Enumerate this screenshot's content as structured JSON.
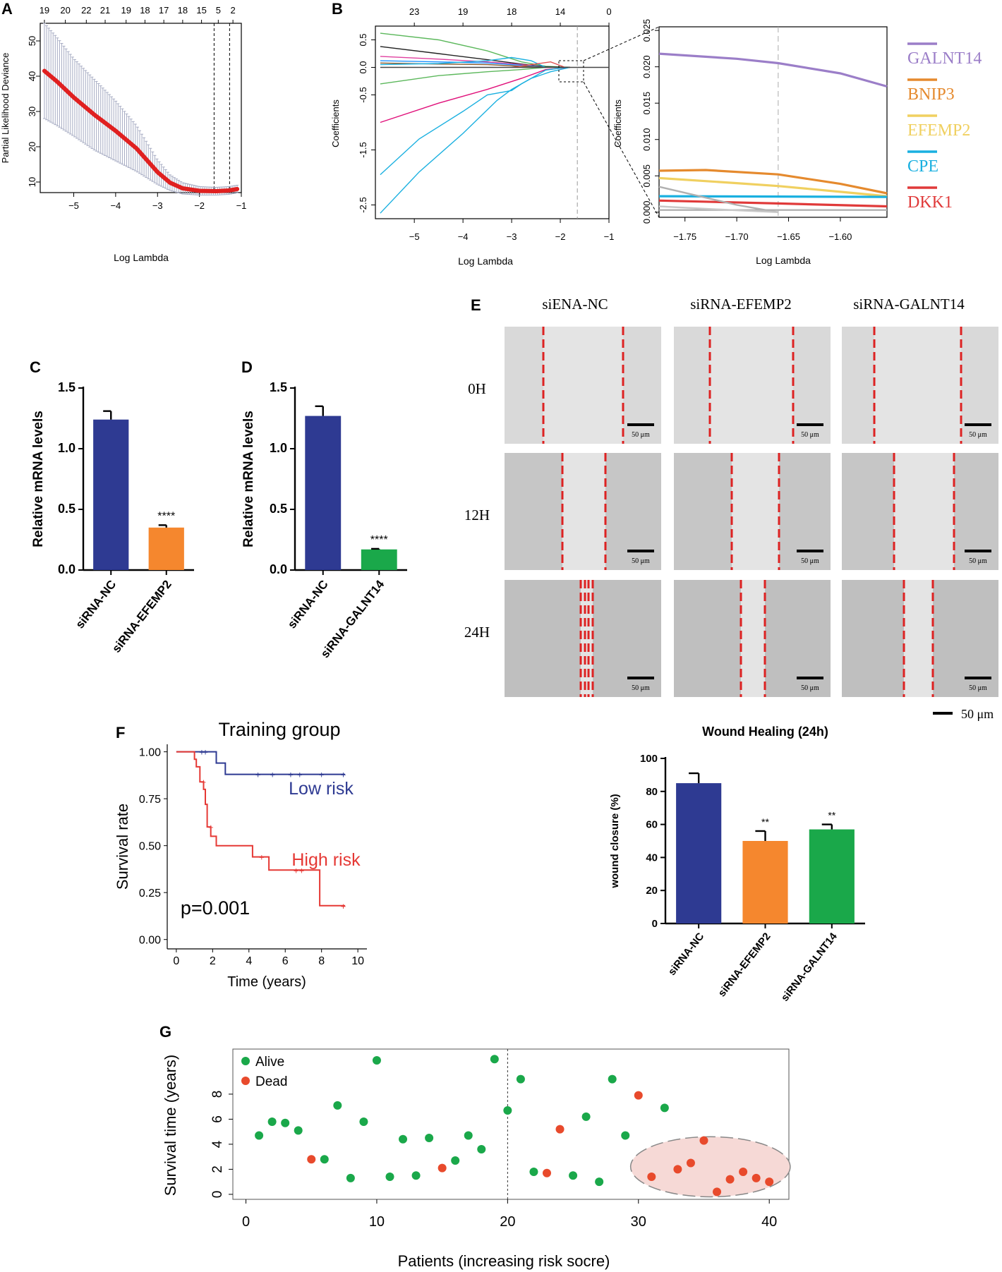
{
  "figure": {
    "panel_letters": [
      "A",
      "B",
      "C",
      "D",
      "E",
      "F",
      "G"
    ]
  },
  "chart_data": [
    {
      "panel": "A",
      "type": "line",
      "title": "",
      "xlabel": "Log Lambda",
      "ylabel": "Partial Likelihood Deviance",
      "xlim": [
        -5.8,
        -1.0
      ],
      "ylim": [
        7,
        55
      ],
      "xticks": [
        -5,
        -4,
        -3,
        -2,
        -1
      ],
      "yticks": [
        10,
        20,
        30,
        40,
        50
      ],
      "top_ticks": {
        "x": [
          -5.7,
          -5.2,
          -4.7,
          -4.25,
          -3.75,
          -3.3,
          -2.85,
          -2.4,
          -1.95,
          -1.55,
          -1.2
        ],
        "labels": [
          "19",
          "20",
          "22",
          "21",
          "19",
          "18",
          "17",
          "18",
          "15",
          "5",
          "2"
        ]
      },
      "vlines": [
        -1.65,
        -1.28
      ],
      "series": [
        {
          "name": "deviance",
          "x": [
            -5.7,
            -5.4,
            -5.0,
            -4.5,
            -4.0,
            -3.5,
            -3.0,
            -2.7,
            -2.4,
            -2.0,
            -1.6,
            -1.3,
            -1.1
          ],
          "y": [
            41.5,
            38.5,
            34.0,
            29.0,
            24.5,
            19.5,
            12.8,
            9.8,
            8.2,
            7.5,
            7.4,
            7.6,
            8.0
          ],
          "err": [
            13.5,
            12.5,
            11.0,
            10.0,
            8.5,
            6.5,
            3.5,
            2.2,
            1.6,
            1.2,
            1.1,
            1.1,
            1.1
          ]
        }
      ]
    },
    {
      "panel": "B",
      "type": "line",
      "title": "",
      "xlabel": "Log Lambda",
      "ylabel": "Coefficients",
      "xlim": [
        -5.8,
        -1.0
      ],
      "ylim": [
        -2.75,
        0.75
      ],
      "xticks": [
        -5,
        -4,
        -3,
        -2,
        -1
      ],
      "yticks": [
        -2.5,
        -1.5,
        -0.5,
        0.0,
        0.5
      ],
      "top_ticks": {
        "x": [
          -5.0,
          -4.0,
          -3.0,
          -2.0,
          -1.0
        ],
        "labels": [
          "23",
          "19",
          "18",
          "14",
          "0"
        ]
      },
      "vline": -1.65,
      "series": [
        {
          "color": "#5cb85c",
          "x": [
            -5.7,
            -4.5,
            -3.5,
            -2.8,
            -2.3,
            -1.8
          ],
          "y": [
            0.62,
            0.5,
            0.3,
            0.1,
            0.02,
            0.0
          ]
        },
        {
          "color": "#222222",
          "x": [
            -5.7,
            -4.5,
            -3.5,
            -2.8,
            -2.3,
            -1.8
          ],
          "y": [
            0.38,
            0.25,
            0.14,
            0.06,
            0.01,
            0.0
          ]
        },
        {
          "color": "#e040a0",
          "x": [
            -5.7,
            -4.5,
            -3.5,
            -2.8,
            -2.3
          ],
          "y": [
            0.2,
            0.15,
            0.1,
            0.05,
            0.0
          ]
        },
        {
          "color": "#1e90ff",
          "x": [
            -5.7,
            -4.5,
            -3.5,
            -2.8,
            -2.3
          ],
          "y": [
            0.12,
            0.1,
            0.08,
            0.04,
            0.0
          ]
        },
        {
          "color": "#8a5a2b",
          "x": [
            -5.7,
            -4.5,
            -3.5,
            -2.8,
            -2.3
          ],
          "y": [
            0.08,
            0.06,
            0.05,
            0.02,
            0.0
          ]
        },
        {
          "color": "#5cb85c",
          "x": [
            -5.7,
            -4.5,
            -3.5,
            -2.8,
            -2.3
          ],
          "y": [
            -0.3,
            -0.15,
            -0.08,
            -0.04,
            0.0
          ]
        },
        {
          "color": "#e0107a",
          "x": [
            -5.7,
            -4.5,
            -3.5,
            -2.8,
            -2.3,
            -1.8
          ],
          "y": [
            -1.0,
            -0.65,
            -0.4,
            -0.2,
            -0.04,
            0.0
          ]
        },
        {
          "color": "#1ab0e0",
          "x": [
            -5.7,
            -4.9,
            -4.0,
            -3.3,
            -3.0,
            -2.6,
            -2.2,
            -1.8
          ],
          "y": [
            -2.65,
            -1.9,
            -1.2,
            -0.6,
            -0.4,
            -0.2,
            -0.08,
            0.0
          ]
        },
        {
          "color": "#1ab0e0",
          "x": [
            -5.7,
            -4.9,
            -4.0,
            -3.5,
            -3.0,
            -2.8,
            -2.3,
            -1.9
          ],
          "y": [
            -1.95,
            -1.3,
            -0.8,
            -0.5,
            -0.42,
            -0.3,
            -0.05,
            0.0
          ]
        },
        {
          "color": "#1ab0e0",
          "x": [
            -5.7,
            -4.5,
            -3.5,
            -3.0,
            -2.6,
            -2.3
          ],
          "y": [
            0.05,
            0.07,
            0.12,
            0.18,
            0.12,
            0.0
          ]
        },
        {
          "color": "#e05050",
          "x": [
            -3.0,
            -2.6,
            -2.2,
            -1.9
          ],
          "y": [
            0.0,
            0.05,
            0.1,
            0.0
          ]
        },
        {
          "color": "#444444",
          "x": [
            -5.7,
            -1.0
          ],
          "y": [
            0.0,
            0.0
          ]
        }
      ]
    },
    {
      "panel": "B-zoom",
      "type": "line",
      "title": "",
      "xlabel": "Log Lambda",
      "ylabel": "Coefficients",
      "xlim": [
        -1.775,
        -1.555
      ],
      "ylim": [
        -0.0007,
        0.0255
      ],
      "xticks": [
        -1.75,
        -1.7,
        -1.65,
        -1.6
      ],
      "xtick_labels": [
        "−1.75",
        "−1.70",
        "−1.65",
        "−1.60"
      ],
      "yticks": [
        0.0,
        0.005,
        0.01,
        0.015,
        0.02,
        0.025
      ],
      "ytick_labels": [
        "0.000",
        "0.005",
        "0.010",
        "0.015",
        "0.020",
        "0.025"
      ],
      "vline": -1.66,
      "series": [
        {
          "name": "GALNT14",
          "color": "#9b7ec8",
          "x": [
            -1.775,
            -1.7,
            -1.66,
            -1.6,
            -1.555
          ],
          "y": [
            0.0218,
            0.0211,
            0.0205,
            0.0191,
            0.0173
          ]
        },
        {
          "name": "BNIP3",
          "color": "#e58a2e",
          "x": [
            -1.775,
            -1.73,
            -1.66,
            -1.6,
            -1.555
          ],
          "y": [
            0.0057,
            0.0058,
            0.0052,
            0.0039,
            0.0026
          ]
        },
        {
          "name": "EFEMP2",
          "color": "#f0d060",
          "x": [
            -1.775,
            -1.7,
            -1.66,
            -1.6,
            -1.555
          ],
          "y": [
            0.0047,
            0.004,
            0.0036,
            0.0028,
            0.0022
          ]
        },
        {
          "name": "CPE",
          "color": "#1ab0e0",
          "x": [
            -1.775,
            -1.555
          ],
          "y": [
            0.0022,
            0.0021
          ]
        },
        {
          "name": "DKK1",
          "color": "#e03a3a",
          "x": [
            -1.775,
            -1.66,
            -1.555
          ],
          "y": [
            0.0016,
            0.0012,
            0.0008
          ]
        },
        {
          "name": "",
          "color": "#b0b0b0",
          "x": [
            -1.775,
            -1.7,
            -1.66
          ],
          "y": [
            0.0035,
            0.001,
            0.0
          ]
        },
        {
          "name": "",
          "color": "#b0b0b0",
          "x": [
            -1.775,
            -1.555
          ],
          "y": [
            0.0003,
            0.0003
          ]
        },
        {
          "name": "",
          "color": "#c8c8c8",
          "x": [
            -1.775,
            -1.72,
            -1.66
          ],
          "y": [
            0.0008,
            0.0004,
            0.0
          ]
        }
      ],
      "legend": [
        "GALNT14",
        "BNIP3",
        "EFEMP2",
        "CPE",
        "DKK1"
      ]
    },
    {
      "panel": "C",
      "type": "bar",
      "title": "",
      "ylabel": "Relative mRNA levels",
      "ylim": [
        0,
        1.5
      ],
      "yticks": [
        "0.0",
        "0.5",
        "1.0",
        "1.5"
      ],
      "categories": [
        "siRNA-NC",
        "siRNA-EFEMP2"
      ],
      "values": [
        1.24,
        0.35
      ],
      "errors": [
        0.07,
        0.02
      ],
      "colors": [
        "#2e3a92",
        "#f5872e"
      ],
      "significance": [
        "",
        "****"
      ]
    },
    {
      "panel": "D",
      "type": "bar",
      "title": "",
      "ylabel": "Relative mRNA levels",
      "ylim": [
        0,
        1.5
      ],
      "yticks": [
        "0.0",
        "0.5",
        "1.0",
        "1.5"
      ],
      "categories": [
        "siRNA-NC",
        "siRNA-GALNT14"
      ],
      "values": [
        1.27,
        0.17
      ],
      "errors": [
        0.08,
        0.005
      ],
      "colors": [
        "#2e3a92",
        "#1aa84a"
      ],
      "significance": [
        "",
        "****"
      ]
    },
    {
      "panel": "E",
      "type": "bar",
      "title": "Wound Healing (24h)",
      "ylabel": "wound closure  (%)",
      "ylim": [
        0,
        100
      ],
      "yticks": [
        "0",
        "20",
        "40",
        "60",
        "80",
        "100"
      ],
      "categories": [
        "siRNA-NC",
        "siRNA-EFEMP2",
        "siRNA-GALNT14"
      ],
      "values": [
        85,
        50,
        57
      ],
      "errors": [
        6,
        6,
        3
      ],
      "colors": [
        "#2e3a92",
        "#f5872e",
        "#1aa84a"
      ],
      "significance": [
        "",
        "**",
        "**"
      ]
    },
    {
      "panel": "F",
      "type": "line",
      "title": "Training group",
      "xlabel": "Time (years)",
      "ylabel": "Survival rate",
      "xlim": [
        -0.5,
        10.5
      ],
      "ylim": [
        -0.05,
        1.04
      ],
      "xticks": [
        0,
        2,
        4,
        6,
        8,
        10
      ],
      "yticks": [
        "0.00",
        "0.25",
        "0.50",
        "0.75",
        "1.00"
      ],
      "annotation": "p=0.001",
      "series": [
        {
          "name": "Low risk",
          "color": "#2e3a92",
          "x": [
            0,
            2.2,
            2.2,
            2.7,
            2.7,
            9.3
          ],
          "y": [
            1.0,
            1.0,
            0.94,
            0.94,
            0.88,
            0.88
          ],
          "censor_x": [
            1.4,
            1.6,
            4.5,
            5.3,
            6.3,
            6.8,
            8.0,
            9.2
          ],
          "censor_y": [
            1.0,
            1.0,
            0.88,
            0.88,
            0.88,
            0.88,
            0.88,
            0.88
          ]
        },
        {
          "name": "High risk",
          "color": "#e53935",
          "x": [
            0,
            1.0,
            1.0,
            1.1,
            1.1,
            1.3,
            1.3,
            1.5,
            1.5,
            1.6,
            1.6,
            1.7,
            1.7,
            1.9,
            1.9,
            2.2,
            2.2,
            4.2,
            4.2,
            5.1,
            5.1,
            7.9,
            7.9,
            9.3
          ],
          "y": [
            1.0,
            1.0,
            0.96,
            0.96,
            0.92,
            0.92,
            0.84,
            0.84,
            0.8,
            0.8,
            0.72,
            0.72,
            0.6,
            0.6,
            0.55,
            0.55,
            0.5,
            0.5,
            0.44,
            0.44,
            0.37,
            0.37,
            0.18,
            0.18
          ],
          "censor_x": [
            1.5,
            1.9,
            4.7,
            6.6,
            6.9,
            9.2
          ],
          "censor_y": [
            0.84,
            0.6,
            0.44,
            0.37,
            0.37,
            0.18
          ]
        }
      ]
    },
    {
      "panel": "G",
      "type": "scatter",
      "title": "",
      "xlabel": "Patients (increasing risk socre)",
      "ylabel": "Survival time (years)",
      "xlim": [
        -1,
        41.5
      ],
      "ylim": [
        -0.4,
        11.6
      ],
      "xticks": [
        0,
        10,
        20,
        30,
        40
      ],
      "yticks": [
        0,
        2,
        4,
        6,
        8
      ],
      "vline": 20,
      "legend": [
        "Alive",
        "Dead"
      ],
      "colors": {
        "Alive": "#1aa84a",
        "Dead": "#e84a2c"
      },
      "points": {
        "x": [
          1,
          2,
          3,
          4,
          5,
          6,
          7,
          8,
          9,
          10,
          11,
          12,
          13,
          14,
          15,
          16,
          17,
          18,
          19,
          20,
          21,
          22,
          23,
          24,
          25,
          26,
          27,
          28,
          29,
          30,
          31,
          32,
          33,
          34,
          35,
          36,
          37,
          38,
          39,
          40
        ],
        "y": [
          4.7,
          5.8,
          5.7,
          5.1,
          2.8,
          2.8,
          7.1,
          1.3,
          5.8,
          10.7,
          1.4,
          4.4,
          1.5,
          4.5,
          2.1,
          2.7,
          4.7,
          3.6,
          10.8,
          6.7,
          9.2,
          1.8,
          1.7,
          5.2,
          1.5,
          6.2,
          1.0,
          9.2,
          4.7,
          7.9,
          1.4,
          6.9,
          2.0,
          2.5,
          4.3,
          0.2,
          1.2,
          1.8,
          1.3,
          1.0
        ],
        "status": [
          "Alive",
          "Alive",
          "Alive",
          "Alive",
          "Dead",
          "Alive",
          "Alive",
          "Alive",
          "Alive",
          "Alive",
          "Alive",
          "Alive",
          "Alive",
          "Alive",
          "Dead",
          "Alive",
          "Alive",
          "Alive",
          "Alive",
          "Alive",
          "Alive",
          "Alive",
          "Dead",
          "Dead",
          "Alive",
          "Alive",
          "Alive",
          "Alive",
          "Alive",
          "Dead",
          "Dead",
          "Alive",
          "Dead",
          "Dead",
          "Dead",
          "Dead",
          "Dead",
          "Dead",
          "Dead",
          "Dead"
        ]
      },
      "ellipse": {
        "cx": 35.5,
        "cy": 2.2,
        "rx": 6.1,
        "ry": 2.4
      }
    }
  ],
  "panel_e": {
    "column_labels": [
      "siENA-NC",
      "siRNA-EFEMP2",
      "siRNA-GALNT14"
    ],
    "row_labels": [
      "0H",
      "12H",
      "24H"
    ],
    "scale_label": "50 μm",
    "image_scale_label": "50 μm"
  }
}
